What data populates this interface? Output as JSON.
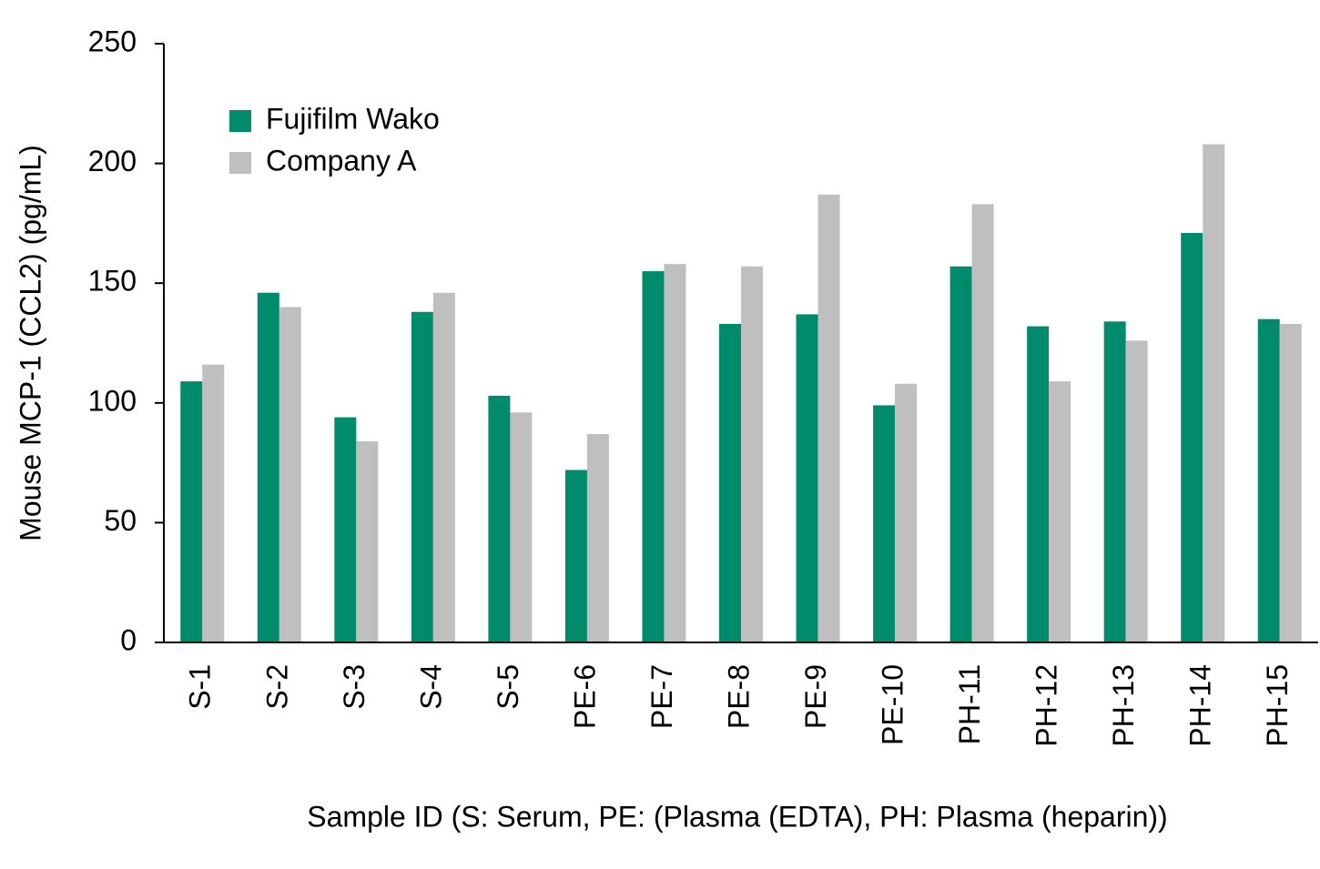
{
  "chart_data": {
    "type": "bar",
    "y_label": "Mouse MCP-1 (CCL2) (pg/mL)",
    "x_label": "Sample ID (S: Serum, PE: (Plasma (EDTA), PH: Plasma (heparin))",
    "categories": [
      "S-1",
      "S-2",
      "S-3",
      "S-4",
      "S-5",
      "PE-6",
      "PE-7",
      "PE-8",
      "PE-9",
      "PE-10",
      "PH-11",
      "PH-12",
      "PH-13",
      "PH-14",
      "PH-15"
    ],
    "series": [
      {
        "name": "Fujifilm Wako",
        "color": "#008c6c",
        "values": [
          109,
          146,
          94,
          138,
          103,
          72,
          155,
          133,
          137,
          99,
          157,
          132,
          134,
          171,
          135
        ]
      },
      {
        "name": "Company A",
        "color": "#bfbfbf",
        "values": [
          116,
          140,
          84,
          146,
          96,
          87,
          158,
          157,
          187,
          108,
          183,
          109,
          126,
          208,
          133
        ]
      }
    ],
    "ylim": [
      0,
      250
    ],
    "yticks": [
      0,
      50,
      100,
      150,
      200,
      250
    ],
    "grid": false,
    "legend": "top-left"
  }
}
